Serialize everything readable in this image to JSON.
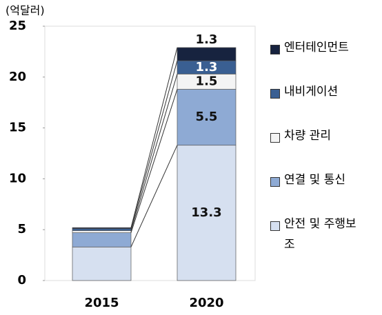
{
  "chart_data": {
    "type": "stacked_bar",
    "unit_label": "(억달러)",
    "categories": [
      "2015",
      "2020"
    ],
    "series": [
      {
        "name": "안전 및 주행보조",
        "color": "#d6e0f0",
        "values": [
          3.3,
          13.3
        ]
      },
      {
        "name": "연결 및 통신",
        "color": "#8eaad4",
        "values": [
          1.4,
          5.5
        ]
      },
      {
        "name": "차량 관리",
        "color": "#f4f4f4",
        "values": [
          0.2,
          1.5
        ]
      },
      {
        "name": "내비게이션",
        "color": "#3a5f92",
        "values": [
          0.2,
          1.3
        ]
      },
      {
        "name": "엔터테인먼트",
        "color": "#17233f",
        "values": [
          0.1,
          1.3
        ]
      }
    ],
    "labeled_category": 1,
    "ylim": [
      0,
      25
    ],
    "yticks": [
      0,
      5,
      10,
      15,
      20,
      25
    ],
    "grid": false
  }
}
